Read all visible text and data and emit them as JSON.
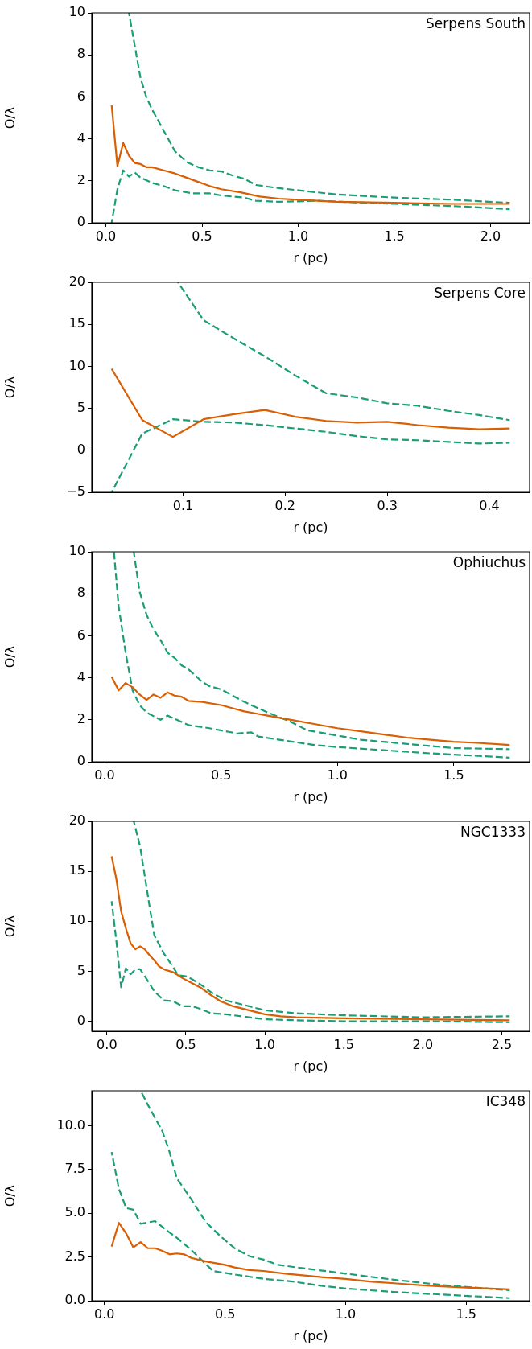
{
  "chart_data": [
    {
      "type": "line",
      "title": "Serpens South",
      "xlabel": "r (pc)",
      "ylabel": "O/λ",
      "xlim": [
        -0.0735,
        2.2035
      ],
      "ylim": [
        0,
        10
      ],
      "xticks": [
        {
          "value": 0,
          "label": "0.0"
        },
        0.5,
        {
          "value": 1,
          "label": "1.0"
        },
        1.5,
        {
          "value": 2,
          "label": "2.0"
        }
      ],
      "yticks": [
        0,
        2,
        4,
        6,
        8,
        10
      ],
      "series": [
        {
          "color": "#d95f02",
          "line_style": "solid",
          "x": [
            0.03,
            0.06,
            0.09,
            0.12,
            0.15,
            0.18,
            0.21,
            0.24,
            0.3,
            0.36,
            0.42,
            0.48,
            0.54,
            0.6,
            0.7,
            0.8,
            0.9,
            1.0,
            1.2,
            1.5,
            1.8,
            2.1
          ],
          "values": [
            5.6,
            2.7,
            3.8,
            3.2,
            2.85,
            2.8,
            2.65,
            2.65,
            2.5,
            2.35,
            2.15,
            1.95,
            1.75,
            1.6,
            1.45,
            1.25,
            1.15,
            1.1,
            1.0,
            0.95,
            0.9,
            0.9
          ]
        },
        {
          "color": "#1b9e77",
          "line_style": "dashed",
          "x": [
            0.12,
            0.18,
            0.21,
            0.24,
            0.3,
            0.36,
            0.42,
            0.48,
            0.54,
            0.6,
            0.66,
            0.72,
            0.78,
            0.9,
            1.0,
            1.2,
            1.5,
            1.8,
            2.1
          ],
          "values": [
            10,
            6.9,
            6.0,
            5.4,
            4.4,
            3.4,
            2.9,
            2.65,
            2.5,
            2.45,
            2.25,
            2.1,
            1.8,
            1.65,
            1.55,
            1.35,
            1.2,
            1.1,
            0.95
          ]
        },
        {
          "color": "#1b9e77",
          "line_style": "dashed",
          "x": [
            0.03,
            0.06,
            0.09,
            0.12,
            0.15,
            0.18,
            0.24,
            0.3,
            0.36,
            0.45,
            0.54,
            0.6,
            0.72,
            0.78,
            0.9,
            1.1,
            1.5,
            1.8,
            2.1
          ],
          "values": [
            0,
            1.6,
            2.5,
            2.2,
            2.4,
            2.15,
            1.9,
            1.75,
            1.55,
            1.4,
            1.4,
            1.3,
            1.2,
            1.05,
            1.0,
            1.05,
            0.9,
            0.8,
            0.65
          ]
        }
      ]
    },
    {
      "type": "line",
      "title": "Serpens Core",
      "xlabel": "r (pc)",
      "ylabel": "O/λ",
      "xlim": [
        0.0105,
        0.4395
      ],
      "ylim": [
        -5,
        20
      ],
      "xticks": [
        0.1,
        0.2,
        0.3,
        0.4
      ],
      "yticks": [
        {
          "value": -5,
          "label": "−5"
        },
        0,
        5,
        10,
        15,
        20
      ],
      "series": [
        {
          "color": "#d95f02",
          "line_style": "solid",
          "x": [
            0.03,
            0.06,
            0.09,
            0.12,
            0.15,
            0.18,
            0.21,
            0.24,
            0.27,
            0.3,
            0.33,
            0.36,
            0.39,
            0.42
          ],
          "values": [
            9.7,
            3.6,
            1.6,
            3.7,
            4.3,
            4.8,
            4.0,
            3.5,
            3.3,
            3.4,
            3.0,
            2.7,
            2.5,
            2.6
          ]
        },
        {
          "color": "#1b9e77",
          "line_style": "dashed",
          "x": [
            0.095,
            0.12,
            0.15,
            0.18,
            0.21,
            0.24,
            0.27,
            0.3,
            0.33,
            0.36,
            0.39,
            0.42
          ],
          "values": [
            20,
            15.5,
            13.3,
            11.2,
            8.9,
            6.8,
            6.3,
            5.6,
            5.3,
            4.7,
            4.2,
            3.6
          ]
        },
        {
          "color": "#1b9e77",
          "line_style": "dashed",
          "x": [
            0.03,
            0.06,
            0.09,
            0.12,
            0.15,
            0.18,
            0.21,
            0.24,
            0.27,
            0.3,
            0.33,
            0.36,
            0.39,
            0.42
          ],
          "values": [
            -5,
            2.0,
            3.7,
            3.4,
            3.3,
            3.0,
            2.6,
            2.2,
            1.7,
            1.3,
            1.2,
            1.0,
            0.8,
            0.9
          ]
        }
      ]
    },
    {
      "type": "line",
      "title": "Ophiuchus",
      "xlabel": "r (pc)",
      "ylabel": "O/λ",
      "xlim": [
        -0.0555,
        1.8255
      ],
      "ylim": [
        0,
        10
      ],
      "xticks": [
        {
          "value": 0,
          "label": "0.0"
        },
        0.5,
        {
          "value": 1,
          "label": "1.0"
        },
        1.5
      ],
      "yticks": [
        0,
        2,
        4,
        6,
        8,
        10
      ],
      "series": [
        {
          "color": "#d95f02",
          "line_style": "solid",
          "x": [
            0.03,
            0.06,
            0.09,
            0.12,
            0.15,
            0.18,
            0.21,
            0.24,
            0.27,
            0.3,
            0.33,
            0.36,
            0.42,
            0.5,
            0.55,
            0.6,
            0.65,
            0.7,
            0.8,
            0.9,
            1.0,
            1.1,
            1.2,
            1.3,
            1.4,
            1.5,
            1.6,
            1.74
          ],
          "values": [
            4.05,
            3.4,
            3.75,
            3.55,
            3.2,
            2.95,
            3.2,
            3.05,
            3.3,
            3.15,
            3.1,
            2.9,
            2.85,
            2.7,
            2.55,
            2.4,
            2.3,
            2.2,
            2.0,
            1.8,
            1.6,
            1.45,
            1.3,
            1.15,
            1.05,
            0.95,
            0.9,
            0.8
          ]
        },
        {
          "color": "#1b9e77",
          "line_style": "dashed",
          "x": [
            0.04,
            0.06,
            0.09,
            0.12,
            0.15,
            0.18,
            0.24,
            0.27,
            0.36,
            0.45,
            0.57,
            0.63,
            0.66,
            0.75,
            0.9,
            1.0,
            1.2,
            1.4,
            1.74
          ],
          "values": [
            10,
            7.4,
            5.2,
            3.4,
            2.7,
            2.35,
            2.0,
            2.2,
            1.75,
            1.6,
            1.35,
            1.4,
            1.2,
            1.05,
            0.8,
            0.7,
            0.55,
            0.4,
            0.2
          ]
        },
        {
          "color": "#1b9e77",
          "line_style": "dashed",
          "x": [
            0.125,
            0.15,
            0.18,
            0.21,
            0.24,
            0.27,
            0.3,
            0.33,
            0.36,
            0.42,
            0.45,
            0.5,
            0.6,
            0.7,
            0.8,
            0.87,
            1.0,
            1.1,
            1.3,
            1.5,
            1.74
          ],
          "values": [
            10,
            8.1,
            7.0,
            6.3,
            5.8,
            5.2,
            4.95,
            4.6,
            4.4,
            3.8,
            3.6,
            3.45,
            2.85,
            2.35,
            1.9,
            1.5,
            1.25,
            1.05,
            0.85,
            0.65,
            0.6
          ]
        }
      ]
    },
    {
      "type": "line",
      "title": "NGC1333",
      "xlabel": "r (pc)",
      "ylabel": "O/λ",
      "xlim": [
        -0.096,
        2.676
      ],
      "ylim": [
        -1,
        20
      ],
      "xticks": [
        {
          "value": 0,
          "label": "0.0"
        },
        0.5,
        {
          "value": 1,
          "label": "1.0"
        },
        1.5,
        {
          "value": 2,
          "label": "2.0"
        },
        2.5
      ],
      "yticks": [
        0,
        5,
        10,
        15,
        20
      ],
      "series": [
        {
          "color": "#d95f02",
          "line_style": "solid",
          "x": [
            0.03,
            0.06,
            0.09,
            0.12,
            0.15,
            0.18,
            0.21,
            0.24,
            0.27,
            0.3,
            0.33,
            0.36,
            0.42,
            0.48,
            0.54,
            0.6,
            0.66,
            0.72,
            0.8,
            0.9,
            1.0,
            1.1,
            1.2,
            1.5,
            2.0,
            2.55
          ],
          "values": [
            16.5,
            14.2,
            11.0,
            9.3,
            7.8,
            7.2,
            7.5,
            7.2,
            6.6,
            6.1,
            5.5,
            5.2,
            4.9,
            4.3,
            3.8,
            3.3,
            2.6,
            2.0,
            1.5,
            1.1,
            0.7,
            0.5,
            0.4,
            0.3,
            0.2,
            0.1
          ]
        },
        {
          "color": "#1b9e77",
          "line_style": "dashed",
          "x": [
            0.03,
            0.06,
            0.09,
            0.12,
            0.15,
            0.18,
            0.21,
            0.24,
            0.3,
            0.36,
            0.42,
            0.48,
            0.54,
            0.6,
            0.66,
            0.75,
            0.9,
            1.0,
            1.2,
            1.5,
            2.0,
            2.55
          ],
          "values": [
            12.0,
            8.0,
            3.4,
            5.3,
            4.7,
            5.2,
            5.2,
            4.5,
            3.0,
            2.1,
            2.0,
            1.5,
            1.5,
            1.2,
            0.8,
            0.7,
            0.4,
            0.2,
            0.1,
            0.0,
            0.0,
            -0.1
          ]
        },
        {
          "color": "#1b9e77",
          "line_style": "dashed",
          "x": [
            0.17,
            0.21,
            0.24,
            0.27,
            0.3,
            0.36,
            0.42,
            0.45,
            0.5,
            0.54,
            0.6,
            0.66,
            0.75,
            0.9,
            1.0,
            1.2,
            1.5,
            2.0,
            2.55
          ],
          "values": [
            20,
            17.5,
            14.5,
            11.5,
            8.6,
            6.8,
            5.4,
            4.6,
            4.5,
            4.2,
            3.6,
            2.9,
            2.1,
            1.5,
            1.1,
            0.8,
            0.6,
            0.4,
            0.5
          ]
        }
      ]
    },
    {
      "type": "line",
      "title": "IC348",
      "xlabel": "r (pc)",
      "ylabel": "O/λ",
      "xlim": [
        -0.0525,
        1.7625
      ],
      "ylim": [
        0,
        12
      ],
      "xticks": [
        {
          "value": 0,
          "label": "0.0"
        },
        0.5,
        {
          "value": 1,
          "label": "1.0"
        },
        1.5
      ],
      "yticks": [
        {
          "value": 0,
          "label": "0.0"
        },
        2.5,
        {
          "value": 5,
          "label": "5.0"
        },
        7.5,
        {
          "value": 10,
          "label": "10.0"
        }
      ],
      "series": [
        {
          "color": "#d95f02",
          "line_style": "solid",
          "x": [
            0.03,
            0.06,
            0.09,
            0.12,
            0.15,
            0.18,
            0.21,
            0.24,
            0.27,
            0.3,
            0.33,
            0.36,
            0.42,
            0.5,
            0.54,
            0.6,
            0.66,
            0.75,
            0.9,
            1.0,
            1.1,
            1.2,
            1.35,
            1.5,
            1.68
          ],
          "values": [
            3.1,
            4.45,
            3.85,
            3.05,
            3.35,
            3.0,
            3.0,
            2.85,
            2.65,
            2.7,
            2.65,
            2.45,
            2.25,
            2.05,
            1.9,
            1.75,
            1.7,
            1.55,
            1.35,
            1.25,
            1.1,
            1.0,
            0.85,
            0.75,
            0.65
          ]
        },
        {
          "color": "#1b9e77",
          "line_style": "dashed",
          "x": [
            0.03,
            0.06,
            0.09,
            0.12,
            0.15,
            0.21,
            0.27,
            0.3,
            0.36,
            0.42,
            0.45,
            0.54,
            0.66,
            0.78,
            0.9,
            1.0,
            1.2,
            1.4,
            1.68
          ],
          "values": [
            8.5,
            6.4,
            5.3,
            5.2,
            4.4,
            4.55,
            3.9,
            3.6,
            2.9,
            2.1,
            1.7,
            1.5,
            1.25,
            1.1,
            0.85,
            0.7,
            0.5,
            0.35,
            0.15
          ]
        },
        {
          "color": "#1b9e77",
          "line_style": "dashed",
          "x": [
            0.15,
            0.18,
            0.24,
            0.27,
            0.3,
            0.36,
            0.42,
            0.48,
            0.54,
            0.6,
            0.66,
            0.72,
            0.8,
            1.0,
            1.2,
            1.4,
            1.68
          ],
          "values": [
            12,
            11.2,
            9.7,
            8.5,
            7.0,
            5.8,
            4.5,
            3.7,
            3.0,
            2.55,
            2.35,
            2.05,
            1.9,
            1.55,
            1.2,
            0.9,
            0.6
          ]
        }
      ]
    }
  ]
}
